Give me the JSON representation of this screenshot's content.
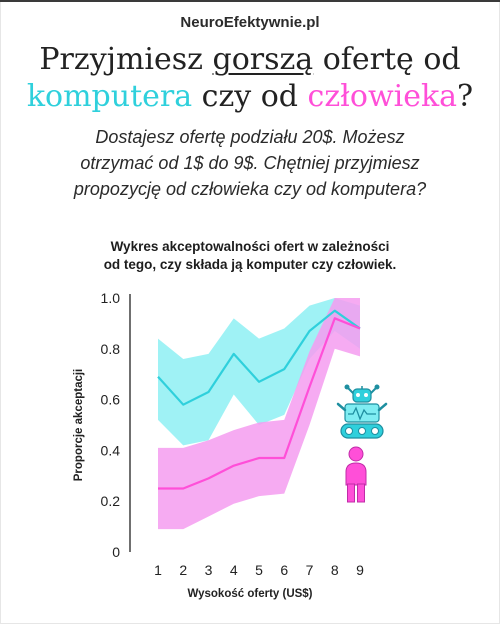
{
  "brand": "NeuroEfektywnie.pl",
  "headline": {
    "line1_prefix": "Przyjmiesz ",
    "line1_underlined": "gorszą",
    "line1_suffix": " ofertę od",
    "line2_word1": "komputera",
    "line2_middle": " czy od ",
    "line2_word2": "człowieka",
    "line2_end": "?"
  },
  "question": {
    "line1": "Dostajesz ofertę podziału 20$. Możesz",
    "line2": "otrzymać od 1$ do 9$. Chętniej przyjmiesz",
    "line3": "propozycję od człowieka czy od komputera?"
  },
  "colors": {
    "computer": "#2fd0dc",
    "human": "#ff4fd8",
    "computer_band": "#7fedf2",
    "human_band": "#f59cf0"
  },
  "icons": {
    "computer": "robot-icon",
    "human": "person-icon"
  },
  "chart_data": {
    "type": "line",
    "title_line1": "Wykres akceptowalności ofert w zależności",
    "title_line2": "od tego, czy składa ją komputer czy człowiek.",
    "xlabel": "Wysokość oferty (US$)",
    "ylabel": "Proporcje akceptacji",
    "x": [
      1,
      2,
      3,
      4,
      5,
      6,
      7,
      8,
      9
    ],
    "xticks": [
      "1",
      "2",
      "3",
      "4",
      "5",
      "6",
      "7",
      "8",
      "9"
    ],
    "yticks": [
      "0",
      "0.2",
      "0.4",
      "0.6",
      "0.8",
      "1.0"
    ],
    "ylim": [
      0,
      1.0
    ],
    "series": [
      {
        "key": "computer",
        "values": [
          0.69,
          0.58,
          0.63,
          0.78,
          0.67,
          0.72,
          0.87,
          0.95,
          0.88
        ],
        "lower": [
          0.52,
          0.42,
          0.44,
          0.62,
          0.5,
          0.54,
          0.76,
          0.87,
          0.8
        ],
        "upper": [
          0.84,
          0.76,
          0.78,
          0.92,
          0.84,
          0.88,
          0.97,
          1.0,
          0.97
        ]
      },
      {
        "key": "human",
        "values": [
          0.25,
          0.25,
          0.29,
          0.34,
          0.37,
          0.37,
          0.65,
          0.92,
          0.88
        ],
        "lower": [
          0.09,
          0.09,
          0.14,
          0.19,
          0.22,
          0.23,
          0.5,
          0.8,
          0.77
        ],
        "upper": [
          0.41,
          0.41,
          0.44,
          0.48,
          0.51,
          0.52,
          0.79,
          1.0,
          1.0
        ]
      }
    ]
  }
}
